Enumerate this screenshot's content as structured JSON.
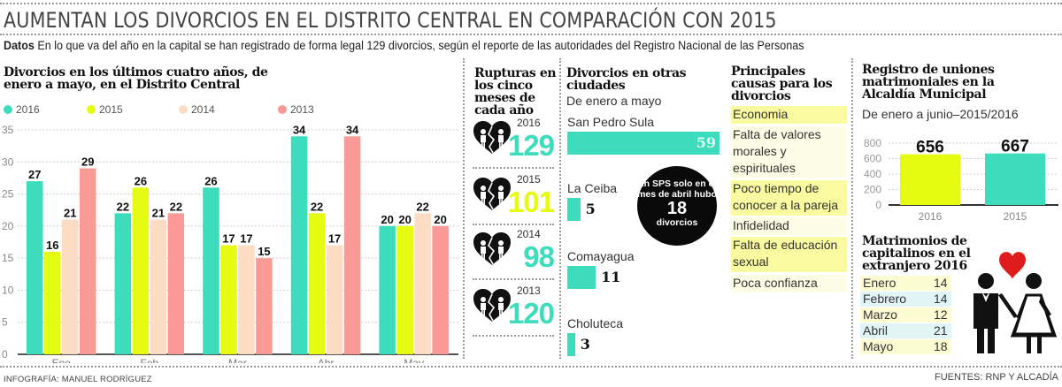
{
  "header": {
    "title": "AUMENTAN LOS DIVORCIOS EN EL DISTRITO CENTRAL EN COMPARACIÓN CON 2015",
    "subtitle_label": "Datos",
    "subtitle_text": "En lo que va del año en la capital se han registrado de forma legal 129 divorcios, según el reporte de las autoridades del Registro Nacional de las Personas"
  },
  "colors": {
    "2016": "#3ddcbc",
    "2015": "#e6fb12",
    "2014": "#fddcc4",
    "2013": "#f99a96"
  },
  "chart_data": [
    {
      "type": "bar",
      "title": "Divorcios en los últimos cuatro años, de enero a mayo, en el Distrito Central",
      "categories": [
        "Ene",
        "Feb",
        "Mar",
        "Abr",
        "May"
      ],
      "series": [
        {
          "name": "2016",
          "values": [
            27,
            22,
            26,
            34,
            20
          ]
        },
        {
          "name": "2015",
          "values": [
            16,
            26,
            17,
            22,
            20
          ]
        },
        {
          "name": "2014",
          "values": [
            21,
            21,
            17,
            17,
            22
          ]
        },
        {
          "name": "2013",
          "values": [
            29,
            22,
            15,
            34,
            20
          ]
        }
      ],
      "yticks": [
        0,
        5,
        10,
        15,
        20,
        25,
        30,
        35
      ],
      "ylim": [
        0,
        35
      ],
      "grid": true,
      "legend": "top",
      "xlabel": "",
      "ylabel": ""
    },
    {
      "type": "bar",
      "title": "Divorcios en otras ciudades",
      "subtitle": "De enero a mayo",
      "orientation": "horizontal",
      "categories": [
        "San Pedro Sula",
        "La Ceiba",
        "Comayagua",
        "Choluteca"
      ],
      "values": [
        59,
        5,
        11,
        3
      ]
    },
    {
      "type": "bar",
      "title": "Registro de uniones matrimoniales en la Alcaldía Municipal",
      "subtitle": "De enero a junio–2015/2016",
      "categories": [
        "2016",
        "2015"
      ],
      "values": [
        656,
        667
      ],
      "yticks": [
        0,
        200,
        400,
        600,
        800
      ],
      "ylim": [
        0,
        800
      ],
      "grid": true
    },
    {
      "type": "table",
      "title": "Matrimonios de capitalinos en el extranjero 2016",
      "rows": [
        {
          "month": "Enero",
          "value": 14
        },
        {
          "month": "Febrero",
          "value": 14
        },
        {
          "month": "Marzo",
          "value": 12
        },
        {
          "month": "Abril",
          "value": 21
        },
        {
          "month": "Mayo",
          "value": 18
        }
      ]
    }
  ],
  "rupturas": {
    "title": "Rupturas en los cinco meses de cada año",
    "items": [
      {
        "year": "2016",
        "value": "129",
        "color": "#3ddcbc"
      },
      {
        "year": "2015",
        "value": "101",
        "color": "#e6fb12"
      },
      {
        "year": "2014",
        "value": "98",
        "color": "#3ddcbc"
      },
      {
        "year": "2013",
        "value": "120",
        "color": "#3ddcbc"
      }
    ]
  },
  "sps_note": {
    "line1": "En SPS solo en el mes de abril hubo",
    "number": "18",
    "line2": "divorcios"
  },
  "causes": {
    "title": "Principales causas para los divorcios",
    "items": [
      "Economia",
      "Falta de valores morales y espirituales",
      "Poco tiempo de conocer a la pareja",
      "Infidelidad",
      "Falta de educación sexual",
      "Poca confianza"
    ]
  },
  "footer": {
    "credit": "INFOGRAFÍA: MANUEL RODRÍGUEZ",
    "sources": "FUENTES: RNP Y ALCADÍA"
  }
}
